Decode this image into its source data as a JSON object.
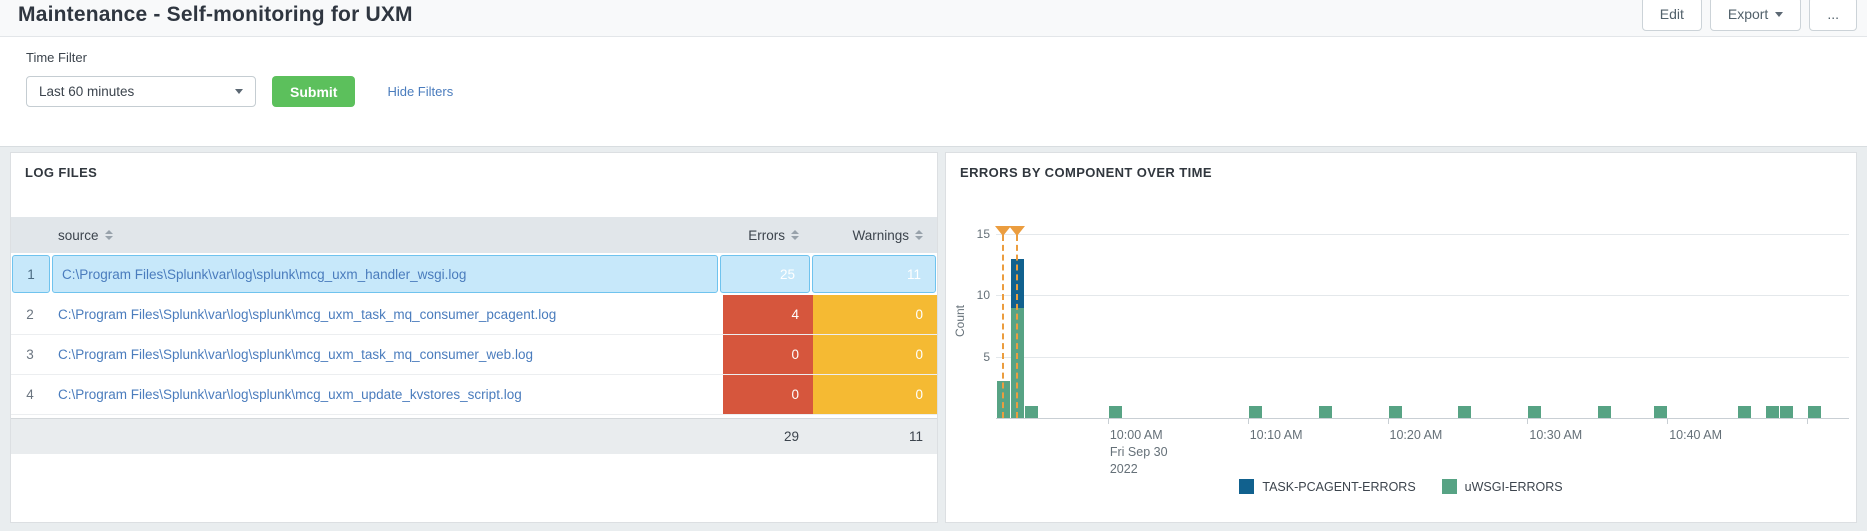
{
  "header": {
    "title": "Maintenance - Self-monitoring for UXM",
    "edit_label": "Edit",
    "export_label": "Export",
    "more_label": "..."
  },
  "filters": {
    "label": "Time Filter",
    "time_range_value": "Last 60 minutes",
    "submit_label": "Submit",
    "hide_filters_label": "Hide Filters"
  },
  "log_files_panel": {
    "title": "LOG FILES",
    "columns": [
      {
        "key": "source",
        "label": "source"
      },
      {
        "key": "errors",
        "label": "Errors"
      },
      {
        "key": "warnings",
        "label": "Warnings"
      }
    ],
    "rows": [
      {
        "num": "1",
        "source": "C:\\Program Files\\Splunk\\var\\log\\splunk\\mcg_uxm_handler_wsgi.log",
        "errors": "25",
        "warnings": "11",
        "selected": true
      },
      {
        "num": "2",
        "source": "C:\\Program Files\\Splunk\\var\\log\\splunk\\mcg_uxm_task_mq_consumer_pcagent.log",
        "errors": "4",
        "warnings": "0",
        "selected": false
      },
      {
        "num": "3",
        "source": "C:\\Program Files\\Splunk\\var\\log\\splunk\\mcg_uxm_task_mq_consumer_web.log",
        "errors": "0",
        "warnings": "0",
        "selected": false
      },
      {
        "num": "4",
        "source": "C:\\Program Files\\Splunk\\var\\log\\splunk\\mcg_uxm_update_kvstores_script.log",
        "errors": "0",
        "warnings": "0",
        "selected": false
      }
    ],
    "totals": {
      "errors": "29",
      "warnings": "11"
    }
  },
  "errors_panel": {
    "title": "ERRORS BY COMPONENT OVER TIME"
  },
  "chart_data": {
    "type": "bar",
    "stacked": true,
    "title": "ERRORS BY COMPONENT OVER TIME",
    "xlabel": "",
    "ylabel": "Count",
    "ylim": [
      0,
      15.65
    ],
    "yticks": [
      5,
      10,
      15
    ],
    "grid": "horizontal",
    "legend_position": "bottom",
    "x_window": {
      "start": "9:52 AM Fri Sep 30 2022",
      "end": "10:53 AM Fri Sep 30 2022",
      "minutes": 61
    },
    "xticks": [
      {
        "minute": 8,
        "label": "10:00 AM",
        "sublabels": [
          "Fri Sep 30",
          "2022"
        ]
      },
      {
        "minute": 18,
        "label": "10:10 AM",
        "sublabels": []
      },
      {
        "minute": 28,
        "label": "10:20 AM",
        "sublabels": []
      },
      {
        "minute": 38,
        "label": "10:30 AM",
        "sublabels": []
      },
      {
        "minute": 48,
        "label": "10:40 AM",
        "sublabels": []
      },
      {
        "minute": 58,
        "label": "",
        "sublabels": []
      }
    ],
    "series": [
      {
        "key": "task",
        "name": "TASK-PCAGENT-ERRORS",
        "color": "#11618e",
        "stack_order": 1
      },
      {
        "key": "uwsgi",
        "name": "uWSGI-ERRORS",
        "color": "#57a384",
        "stack_order": 0
      }
    ],
    "bars": [
      {
        "minute": 0,
        "time": "9:52 AM",
        "uwsgi": 3,
        "task": 0
      },
      {
        "minute": 1,
        "time": "9:53 AM",
        "uwsgi": 9,
        "task": 4
      },
      {
        "minute": 2,
        "time": "9:54 AM",
        "uwsgi": 1,
        "task": 0
      },
      {
        "minute": 8,
        "time": "10:00 AM",
        "uwsgi": 1,
        "task": 0
      },
      {
        "minute": 18,
        "time": "10:10 AM",
        "uwsgi": 1,
        "task": 0
      },
      {
        "minute": 23,
        "time": "10:15 AM",
        "uwsgi": 1,
        "task": 0
      },
      {
        "minute": 28,
        "time": "10:20 AM",
        "uwsgi": 1,
        "task": 0
      },
      {
        "minute": 33,
        "time": "10:25 AM",
        "uwsgi": 1,
        "task": 0
      },
      {
        "minute": 38,
        "time": "10:30 AM",
        "uwsgi": 1,
        "task": 0
      },
      {
        "minute": 43,
        "time": "10:35 AM",
        "uwsgi": 1,
        "task": 0
      },
      {
        "minute": 47,
        "time": "10:39 AM",
        "uwsgi": 1,
        "task": 0
      },
      {
        "minute": 53,
        "time": "10:45 AM",
        "uwsgi": 1,
        "task": 0
      },
      {
        "minute": 55,
        "time": "10:47 AM",
        "uwsgi": 1,
        "task": 0
      },
      {
        "minute": 56,
        "time": "10:48 AM",
        "uwsgi": 1,
        "task": 0
      },
      {
        "minute": 58,
        "time": "10:50 AM",
        "uwsgi": 1,
        "task": 0
      }
    ],
    "annotations": [
      {
        "minute": 0.5,
        "marker": "flag",
        "color": "#eb9d3f"
      },
      {
        "minute": 1.5,
        "marker": "flag",
        "color": "#eb9d3f"
      }
    ]
  },
  "colors": {
    "error_cell": "#d6563d",
    "warning_cell": "#f5ba33",
    "selected_row_bg": "#c7e8fa",
    "selected_row_border": "#6fc3ee",
    "submit_green": "#5cc05c",
    "link_blue": "#4a7cbd",
    "series_task_blue": "#11618e",
    "series_uwsgi_green": "#57a384",
    "annotation_orange": "#eb9d3f"
  }
}
